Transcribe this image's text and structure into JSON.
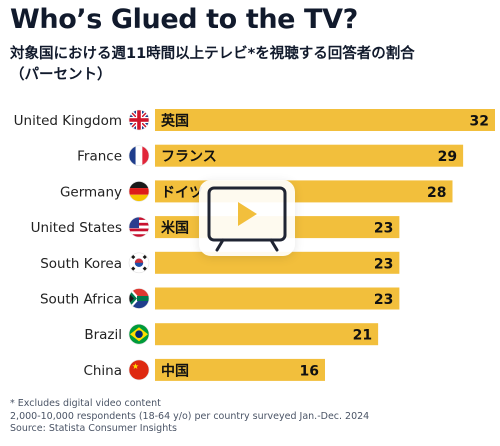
{
  "title": "Who’s Glued to the TV?",
  "subtitle_lines": [
    "対象国における週11時間以上テレビ*を視聴する回答者の割合",
    "（パーセント）"
  ],
  "footnotes": {
    "line1": "* Excludes digital video content",
    "line2": "2,000-10,000 respondents (18-64 y/o) per country surveyed Jan.-Dec. 2024",
    "line3": "Source: Statista Consumer Insights"
  },
  "colors": {
    "bar": "#f2bf3c",
    "title": "#111a2c",
    "label": "#222222",
    "footnote": "#4a5466"
  },
  "overlay": {
    "icon": "video-play-icon"
  },
  "chart_data": {
    "type": "bar",
    "orientation": "horizontal",
    "title": "Who’s Glued to the TV?",
    "categories": [
      "United Kingdom",
      "France",
      "Germany",
      "United States",
      "South Korea",
      "South Africa",
      "Brazil",
      "China"
    ],
    "bar_labels": [
      "英国",
      "フランス",
      "ドイツ",
      "米国",
      "",
      "",
      "",
      "中国"
    ],
    "flags": [
      "flag-uk-icon",
      "flag-france-icon",
      "flag-germany-icon",
      "flag-usa-icon",
      "flag-south-korea-icon",
      "flag-south-africa-icon",
      "flag-brazil-icon",
      "flag-china-icon"
    ],
    "values": [
      32,
      29,
      28,
      23,
      23,
      23,
      21,
      16
    ],
    "xlim": [
      0,
      32
    ],
    "grid": false,
    "legend": "none"
  }
}
